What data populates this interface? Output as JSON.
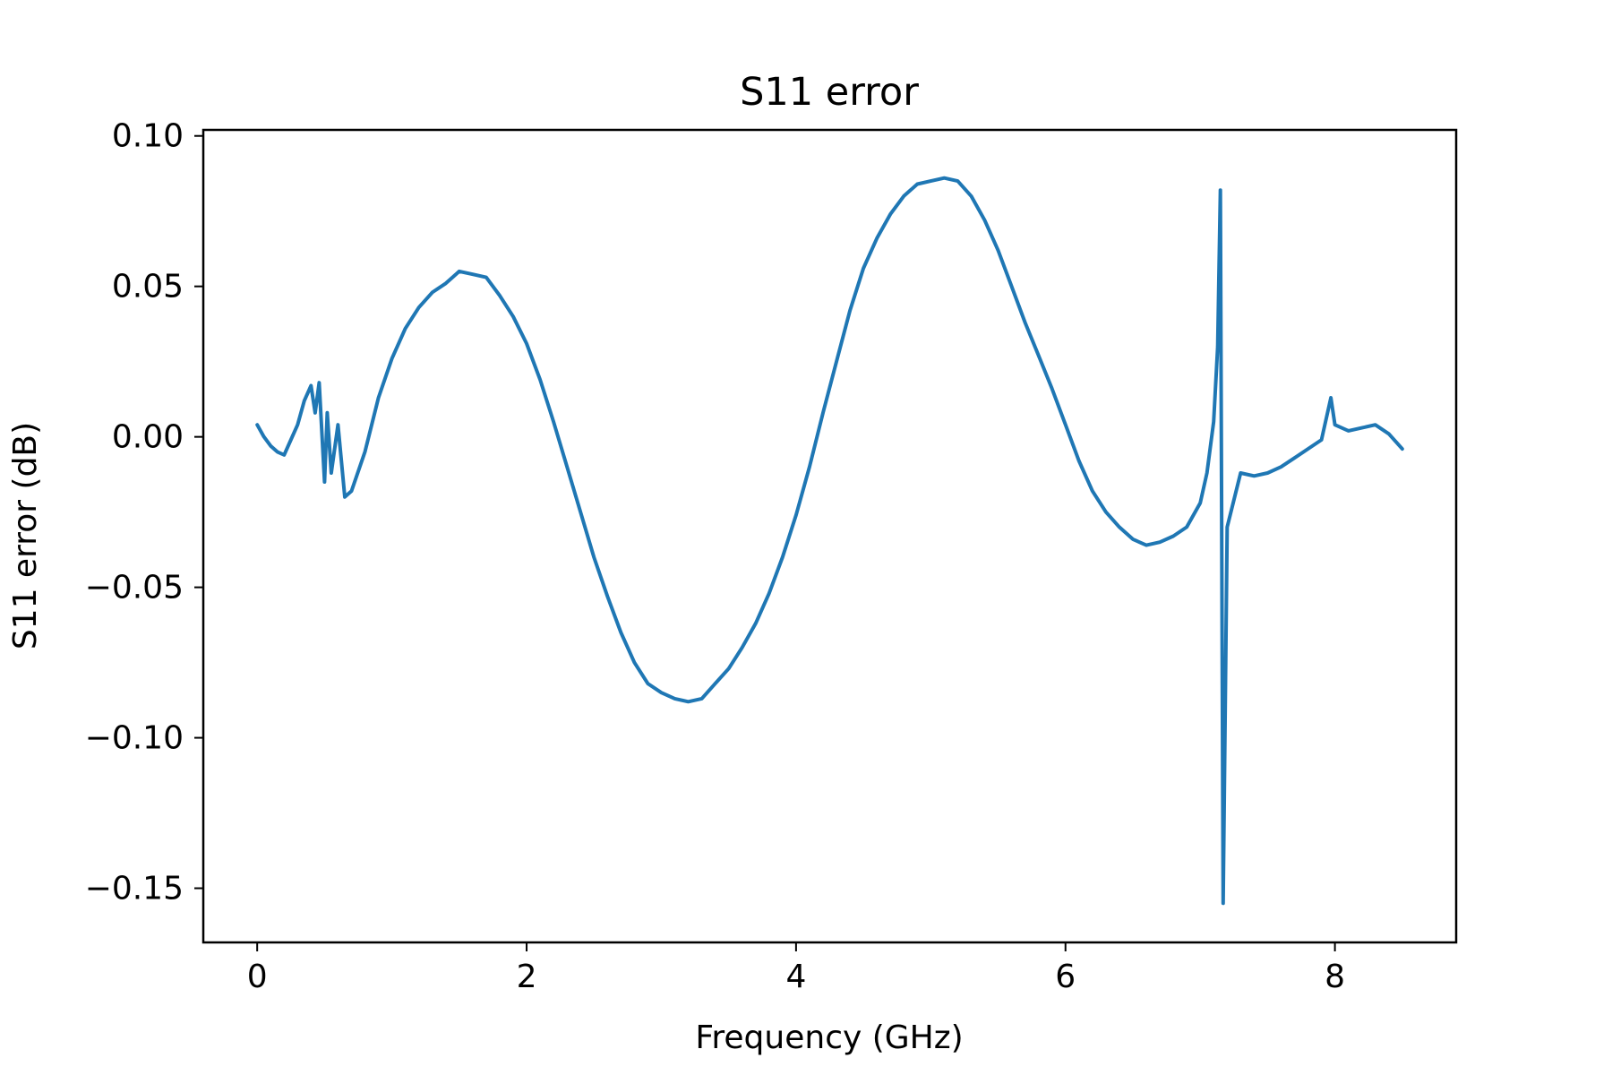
{
  "chart_data": {
    "type": "line",
    "title": "S11 error",
    "xlabel": "Frequency (GHz)",
    "ylabel": "S11 error (dB)",
    "xlim": [
      -0.4,
      8.9
    ],
    "ylim": [
      -0.168,
      0.102
    ],
    "xticks": [
      0,
      2,
      4,
      6,
      8
    ],
    "xtick_labels": [
      "0",
      "2",
      "4",
      "6",
      "8"
    ],
    "yticks": [
      0.1,
      0.05,
      0.0,
      -0.05,
      -0.1,
      -0.15
    ],
    "ytick_labels": [
      "0.10",
      "0.05",
      "0.00",
      "−0.05",
      "−0.10",
      "−0.15"
    ],
    "grid": false,
    "series": [
      {
        "color": "#1f77b4",
        "x": [
          0.0,
          0.05,
          0.1,
          0.15,
          0.2,
          0.25,
          0.3,
          0.35,
          0.4,
          0.43,
          0.46,
          0.5,
          0.52,
          0.55,
          0.6,
          0.65,
          0.7,
          0.8,
          0.9,
          1.0,
          1.1,
          1.2,
          1.3,
          1.4,
          1.5,
          1.6,
          1.7,
          1.8,
          1.9,
          2.0,
          2.1,
          2.2,
          2.3,
          2.4,
          2.5,
          2.6,
          2.7,
          2.8,
          2.9,
          3.0,
          3.1,
          3.2,
          3.3,
          3.4,
          3.5,
          3.6,
          3.7,
          3.8,
          3.9,
          4.0,
          4.1,
          4.2,
          4.3,
          4.4,
          4.5,
          4.6,
          4.7,
          4.8,
          4.9,
          5.0,
          5.1,
          5.2,
          5.3,
          5.4,
          5.5,
          5.6,
          5.7,
          5.8,
          5.9,
          6.0,
          6.1,
          6.2,
          6.3,
          6.4,
          6.5,
          6.6,
          6.7,
          6.8,
          6.9,
          7.0,
          7.05,
          7.1,
          7.13,
          7.15,
          7.17,
          7.2,
          7.3,
          7.4,
          7.5,
          7.6,
          7.7,
          7.8,
          7.9,
          7.97,
          8.0,
          8.1,
          8.2,
          8.3,
          8.4,
          8.5
        ],
        "y": [
          0.004,
          0.0,
          -0.003,
          -0.005,
          -0.006,
          -0.001,
          0.004,
          0.012,
          0.017,
          0.008,
          0.018,
          -0.015,
          0.008,
          -0.012,
          0.004,
          -0.02,
          -0.018,
          -0.005,
          0.013,
          0.026,
          0.036,
          0.043,
          0.048,
          0.051,
          0.055,
          0.054,
          0.053,
          0.047,
          0.04,
          0.031,
          0.019,
          0.005,
          -0.01,
          -0.025,
          -0.04,
          -0.053,
          -0.065,
          -0.075,
          -0.082,
          -0.085,
          -0.087,
          -0.088,
          -0.087,
          -0.082,
          -0.077,
          -0.07,
          -0.062,
          -0.052,
          -0.04,
          -0.026,
          -0.01,
          0.008,
          0.025,
          0.042,
          0.056,
          0.066,
          0.074,
          0.08,
          0.084,
          0.085,
          0.086,
          0.085,
          0.08,
          0.072,
          0.062,
          0.05,
          0.038,
          0.027,
          0.016,
          0.004,
          -0.008,
          -0.018,
          -0.025,
          -0.03,
          -0.034,
          -0.036,
          -0.035,
          -0.033,
          -0.03,
          -0.022,
          -0.012,
          0.005,
          0.03,
          0.082,
          -0.155,
          -0.03,
          -0.012,
          -0.013,
          -0.012,
          -0.01,
          -0.007,
          -0.004,
          -0.001,
          0.013,
          0.004,
          0.002,
          0.003,
          0.004,
          0.001,
          -0.004
        ]
      }
    ]
  }
}
